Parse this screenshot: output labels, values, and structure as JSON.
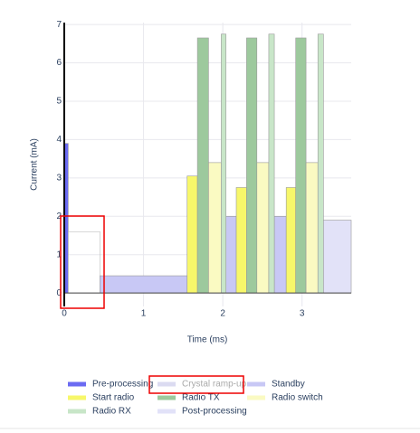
{
  "chart_data": {
    "type": "step-area",
    "x_label": "Time (ms)",
    "y_label": "Current (mA)",
    "xlim": [
      0,
      3.62
    ],
    "ylim": [
      -0.35,
      7.05
    ],
    "xticks": [
      0,
      1,
      2,
      3
    ],
    "yticks": [
      0,
      1,
      2,
      3,
      4,
      5,
      6,
      7
    ],
    "grid": true,
    "series": [
      {
        "name": "Pre-processing",
        "color": "#6b6bf2",
        "x_start": [
          0
        ],
        "x_end": [
          0.05
        ],
        "values": [
          3.9
        ]
      },
      {
        "name": "Crystal ramp-up",
        "color": "#c4c4e8",
        "hidden": true,
        "x_start": [
          0.05
        ],
        "x_end": [
          0.45
        ],
        "values": [
          1.6
        ]
      },
      {
        "name": "Standby",
        "color": "#c8c8f5",
        "x_start": [
          0.45,
          2.0,
          2.65
        ],
        "x_end": [
          1.55,
          2.17,
          2.8
        ],
        "values": [
          0.45,
          2.0,
          2.0
        ]
      },
      {
        "name": "Start radio",
        "color": "#f7f76a",
        "x_start": [
          1.55,
          2.17,
          2.8
        ],
        "x_end": [
          1.68,
          2.3,
          2.92
        ],
        "values": [
          3.05,
          2.75,
          2.75
        ]
      },
      {
        "name": "Radio TX",
        "color": "#9dc99d",
        "x_start": [
          1.68,
          2.3,
          2.92
        ],
        "x_end": [
          1.82,
          2.43,
          3.05
        ],
        "values": [
          6.65,
          6.65,
          6.65
        ]
      },
      {
        "name": "Radio switch",
        "color": "#fafac2",
        "x_start": [
          1.82,
          2.43,
          3.05
        ],
        "x_end": [
          1.98,
          2.58,
          3.2
        ],
        "values": [
          3.4,
          3.4,
          3.4
        ]
      },
      {
        "name": "Radio RX",
        "color": "#c8e6c8",
        "x_start": [
          1.98,
          2.58,
          3.2
        ],
        "x_end": [
          2.04,
          2.65,
          3.27
        ],
        "values": [
          6.75,
          6.75,
          6.75
        ]
      },
      {
        "name": "Post-processing",
        "color": "#e2e2f8",
        "x_start": [
          3.27
        ],
        "x_end": [
          3.62
        ],
        "values": [
          1.9
        ]
      }
    ]
  }
}
